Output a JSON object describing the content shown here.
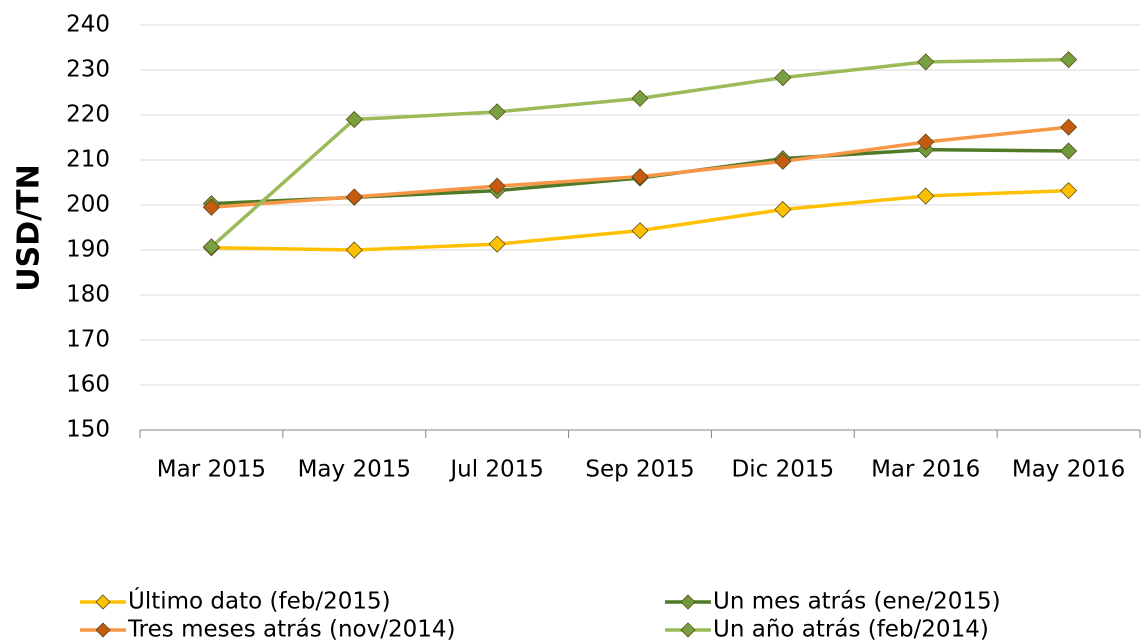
{
  "chart_data": {
    "type": "line",
    "y_label": "USD/TN",
    "categories": [
      "Mar 2015",
      "May 2015",
      "Jul 2015",
      "Sep 2015",
      "Dic 2015",
      "Mar 2016",
      "May 2016"
    ],
    "series": [
      {
        "name": "Último dato (feb/2015)",
        "color": "#ffc000",
        "marker_color": "#ffc000",
        "values": [
          190.5,
          190,
          191.3,
          194.3,
          199,
          202,
          203.2
        ]
      },
      {
        "name": "Un mes atrás (ene/2015)",
        "color": "#4f7a28",
        "marker_color": "#6e9a3a",
        "values": [
          200.3,
          201.7,
          203.2,
          206,
          210.3,
          212.3,
          212
        ]
      },
      {
        "name": "Tres meses atrás (nov/2014)",
        "color": "#f79646",
        "marker_color": "#c55a11",
        "values": [
          199.5,
          201.8,
          204.2,
          206.3,
          209.7,
          214,
          217.3
        ]
      },
      {
        "name": "Un año atrás (feb/2014)",
        "color": "#9bbb59",
        "marker_color": "#77a040",
        "values": [
          190.7,
          219,
          220.7,
          223.7,
          228.3,
          231.8,
          232.3
        ]
      }
    ],
    "ylim": [
      150,
      240
    ],
    "yticks": [
      150,
      160,
      170,
      180,
      190,
      200,
      210,
      220,
      230,
      240
    ],
    "grid": true,
    "legend": "bottom"
  }
}
